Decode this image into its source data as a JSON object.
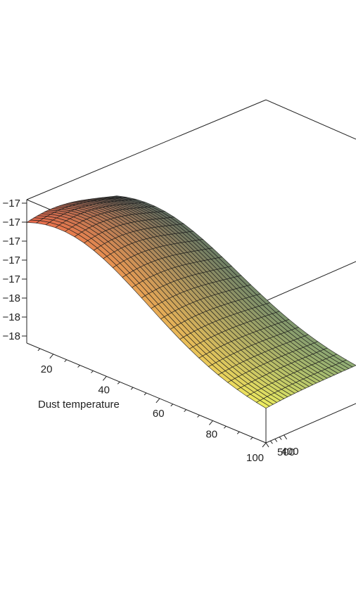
{
  "chart_data": {
    "type": "surface3d",
    "x_axis": {
      "label": "Dust temperature",
      "ticks": [
        "20",
        "40",
        "60",
        "80",
        "100"
      ],
      "range": [
        10,
        100
      ]
    },
    "y_axis": {
      "label": "",
      "ticks": [
        "400",
        "500"
      ],
      "range": [
        0,
        500
      ]
    },
    "z_axis": {
      "label": "",
      "ticks": [
        "−17",
        "−17",
        "−17",
        "−17",
        "−17",
        "−18",
        "−18",
        "−18"
      ]
    },
    "grid_resolution": [
      25,
      25
    ],
    "colormap": [
      "#e8674a",
      "#f0c060",
      "#eef060",
      "#88a878",
      "#607f76",
      "#535d5b"
    ]
  }
}
